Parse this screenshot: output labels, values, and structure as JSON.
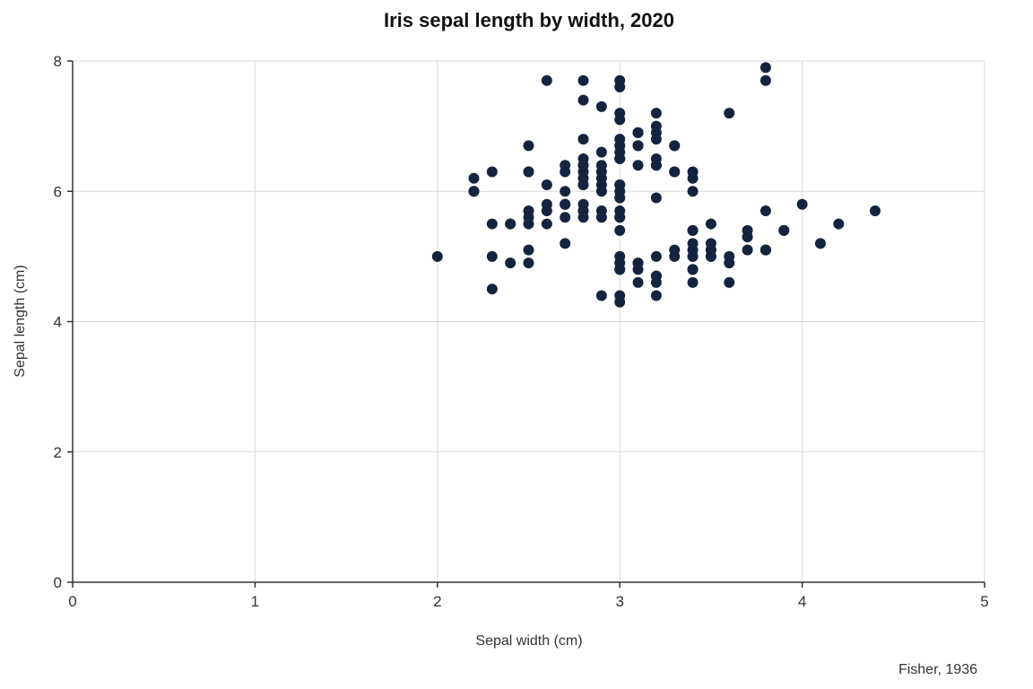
{
  "chart_data": {
    "type": "scatter",
    "title": "Iris sepal length by width, 2020",
    "xlabel": "Sepal width (cm)",
    "ylabel": "Sepal length (cm)",
    "source": "Fisher, 1936",
    "xlim": [
      0,
      5
    ],
    "ylim": [
      0,
      8
    ],
    "xticks": [
      0,
      1,
      2,
      3,
      4,
      5
    ],
    "yticks": [
      0,
      2,
      4,
      6,
      8
    ],
    "grid": true,
    "marker_color": "#14243f",
    "series": [
      {
        "points": [
          [
            3.5,
            5.1
          ],
          [
            3.0,
            4.9
          ],
          [
            3.2,
            4.7
          ],
          [
            3.1,
            4.6
          ],
          [
            3.6,
            5.0
          ],
          [
            3.9,
            5.4
          ],
          [
            3.4,
            4.6
          ],
          [
            3.4,
            5.0
          ],
          [
            2.9,
            4.4
          ],
          [
            3.1,
            4.9
          ],
          [
            3.7,
            5.4
          ],
          [
            3.4,
            4.8
          ],
          [
            3.0,
            4.8
          ],
          [
            3.0,
            4.3
          ],
          [
            4.0,
            5.8
          ],
          [
            4.4,
            5.7
          ],
          [
            3.9,
            5.4
          ],
          [
            3.5,
            5.1
          ],
          [
            3.8,
            5.7
          ],
          [
            3.8,
            5.1
          ],
          [
            3.4,
            5.4
          ],
          [
            3.7,
            5.1
          ],
          [
            3.6,
            4.6
          ],
          [
            3.3,
            5.1
          ],
          [
            3.4,
            4.8
          ],
          [
            3.0,
            5.0
          ],
          [
            3.4,
            5.0
          ],
          [
            3.5,
            5.2
          ],
          [
            3.4,
            5.2
          ],
          [
            3.2,
            4.7
          ],
          [
            3.1,
            4.8
          ],
          [
            3.4,
            5.4
          ],
          [
            4.1,
            5.2
          ],
          [
            4.2,
            5.5
          ],
          [
            3.1,
            4.9
          ],
          [
            3.2,
            5.0
          ],
          [
            3.5,
            5.5
          ],
          [
            3.6,
            4.9
          ],
          [
            3.0,
            4.4
          ],
          [
            3.4,
            5.1
          ],
          [
            3.5,
            5.0
          ],
          [
            2.3,
            4.5
          ],
          [
            3.2,
            4.4
          ],
          [
            3.5,
            5.0
          ],
          [
            3.8,
            5.1
          ],
          [
            3.0,
            4.8
          ],
          [
            3.8,
            5.1
          ],
          [
            3.2,
            4.6
          ],
          [
            3.7,
            5.3
          ],
          [
            3.3,
            5.0
          ],
          [
            3.2,
            7.0
          ],
          [
            3.2,
            6.4
          ],
          [
            3.1,
            6.9
          ],
          [
            2.3,
            5.5
          ],
          [
            2.8,
            6.5
          ],
          [
            2.8,
            5.7
          ],
          [
            3.3,
            6.3
          ],
          [
            2.4,
            4.9
          ],
          [
            2.9,
            6.6
          ],
          [
            2.7,
            5.2
          ],
          [
            2.0,
            5.0
          ],
          [
            3.0,
            5.9
          ],
          [
            2.2,
            6.0
          ],
          [
            2.9,
            6.1
          ],
          [
            2.9,
            5.6
          ],
          [
            3.1,
            6.7
          ],
          [
            3.0,
            5.6
          ],
          [
            2.7,
            5.8
          ],
          [
            2.2,
            6.2
          ],
          [
            2.5,
            5.6
          ],
          [
            3.2,
            5.9
          ],
          [
            2.8,
            6.1
          ],
          [
            2.5,
            6.3
          ],
          [
            2.8,
            6.1
          ],
          [
            2.9,
            6.4
          ],
          [
            3.0,
            6.6
          ],
          [
            2.8,
            6.8
          ],
          [
            3.0,
            6.7
          ],
          [
            2.9,
            6.0
          ],
          [
            2.6,
            5.7
          ],
          [
            2.4,
            5.5
          ],
          [
            2.4,
            5.5
          ],
          [
            2.7,
            5.8
          ],
          [
            2.7,
            6.0
          ],
          [
            3.0,
            5.4
          ],
          [
            3.4,
            6.0
          ],
          [
            3.1,
            6.7
          ],
          [
            2.3,
            6.3
          ],
          [
            3.0,
            5.6
          ],
          [
            2.5,
            5.5
          ],
          [
            2.6,
            5.5
          ],
          [
            3.0,
            6.1
          ],
          [
            2.6,
            5.8
          ],
          [
            2.3,
            5.0
          ],
          [
            2.7,
            5.6
          ],
          [
            3.0,
            5.7
          ],
          [
            2.9,
            5.7
          ],
          [
            2.9,
            6.2
          ],
          [
            2.5,
            5.1
          ],
          [
            2.8,
            5.7
          ],
          [
            3.3,
            6.3
          ],
          [
            2.7,
            5.8
          ],
          [
            3.0,
            7.1
          ],
          [
            2.9,
            6.3
          ],
          [
            3.0,
            6.5
          ],
          [
            3.0,
            7.6
          ],
          [
            2.5,
            4.9
          ],
          [
            2.9,
            7.3
          ],
          [
            2.5,
            6.7
          ],
          [
            3.6,
            7.2
          ],
          [
            3.2,
            6.5
          ],
          [
            2.7,
            6.4
          ],
          [
            3.0,
            6.8
          ],
          [
            2.5,
            5.7
          ],
          [
            2.8,
            5.8
          ],
          [
            3.2,
            6.4
          ],
          [
            3.0,
            6.5
          ],
          [
            3.8,
            7.7
          ],
          [
            2.6,
            7.7
          ],
          [
            2.2,
            6.0
          ],
          [
            3.2,
            6.9
          ],
          [
            2.8,
            5.6
          ],
          [
            2.8,
            7.7
          ],
          [
            2.7,
            6.3
          ],
          [
            3.3,
            6.7
          ],
          [
            3.2,
            7.2
          ],
          [
            2.8,
            6.2
          ],
          [
            3.0,
            6.1
          ],
          [
            2.8,
            6.4
          ],
          [
            3.0,
            7.2
          ],
          [
            2.8,
            7.4
          ],
          [
            3.8,
            7.9
          ],
          [
            2.8,
            6.4
          ],
          [
            2.8,
            6.3
          ],
          [
            2.6,
            6.1
          ],
          [
            3.0,
            7.7
          ],
          [
            3.4,
            6.3
          ],
          [
            3.1,
            6.4
          ],
          [
            3.0,
            6.0
          ],
          [
            3.1,
            6.9
          ],
          [
            3.1,
            6.7
          ],
          [
            3.1,
            6.9
          ],
          [
            2.7,
            5.8
          ],
          [
            3.2,
            6.8
          ],
          [
            3.3,
            6.7
          ],
          [
            3.0,
            6.7
          ],
          [
            2.5,
            6.3
          ],
          [
            3.0,
            6.5
          ],
          [
            3.4,
            6.2
          ],
          [
            3.0,
            5.9
          ]
        ]
      }
    ]
  }
}
